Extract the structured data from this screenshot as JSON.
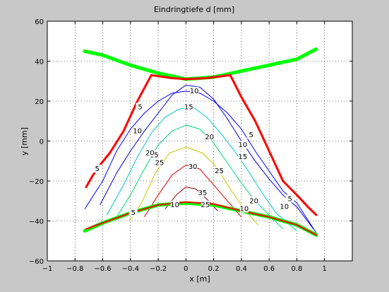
{
  "chart_data": {
    "type": "contour",
    "title": "Eindringtiefe    d [mm]",
    "xlabel": "x   [m]",
    "ylabel": "y    [mm]",
    "xlim": [
      -1,
      1.2
    ],
    "ylim": [
      -60,
      60
    ],
    "x_ticks": [
      -1,
      -0.8,
      -0.6,
      -0.4,
      -0.2,
      0,
      0.2,
      0.4,
      0.6,
      0.8,
      1
    ],
    "x_tick_labels": [
      "−1",
      "−0.8",
      "−0.6",
      "−0.4",
      "−0.2",
      "0",
      "0.2",
      "0.4",
      "0.6",
      "0.8",
      "1"
    ],
    "y_ticks": [
      60,
      40,
      20,
      0,
      -20,
      -40,
      -60
    ],
    "y_tick_labels": [
      "60",
      "40",
      "20",
      "0",
      "−20",
      "−40",
      "−60"
    ],
    "grid": true,
    "grid_style": "dotted",
    "background_color": "#c8c8c8",
    "plot_color": "#ffffff",
    "contours": [
      {
        "level": 5,
        "color": "#0000ff",
        "points": [
          [
            -0.73,
            -34
          ],
          [
            -0.6,
            -20
          ],
          [
            -0.5,
            -5
          ],
          [
            -0.4,
            6
          ],
          [
            -0.3,
            14
          ],
          [
            -0.2,
            20
          ],
          [
            -0.1,
            24
          ],
          [
            0,
            25
          ],
          [
            0.1,
            24
          ],
          [
            0.2,
            20
          ],
          [
            0.3,
            14
          ],
          [
            0.4,
            6
          ],
          [
            0.5,
            -5
          ],
          [
            0.6,
            -15
          ],
          [
            0.7,
            -25
          ],
          [
            0.8,
            -31
          ],
          [
            0.94,
            -46
          ]
        ]
      },
      {
        "level": 10,
        "color": "#0000c8",
        "points": [
          [
            -0.62,
            -32
          ],
          [
            -0.5,
            -16
          ],
          [
            -0.4,
            -5
          ],
          [
            -0.3,
            5
          ],
          [
            -0.2,
            14
          ],
          [
            -0.1,
            23
          ],
          [
            0,
            28
          ],
          [
            0.1,
            27
          ],
          [
            0.2,
            21
          ],
          [
            0.3,
            11
          ],
          [
            0.4,
            0
          ],
          [
            0.5,
            -10
          ],
          [
            0.6,
            -19
          ],
          [
            0.7,
            -27
          ],
          [
            0.8,
            -33
          ],
          [
            0.92,
            -44
          ]
        ]
      },
      {
        "level": 15,
        "color": "#00c8c8",
        "points": [
          [
            -0.57,
            -37
          ],
          [
            -0.45,
            -22
          ],
          [
            -0.35,
            -8
          ],
          [
            -0.25,
            4
          ],
          [
            -0.15,
            12
          ],
          [
            -0.05,
            16
          ],
          [
            0.05,
            17
          ],
          [
            0.15,
            12
          ],
          [
            0.25,
            4
          ],
          [
            0.35,
            -5
          ],
          [
            0.45,
            -15
          ],
          [
            0.55,
            -26
          ],
          [
            0.65,
            -36
          ],
          [
            0.8,
            -45
          ]
        ]
      },
      {
        "level": 20,
        "color": "#00d87c",
        "points": [
          [
            -0.5,
            -38
          ],
          [
            -0.4,
            -27
          ],
          [
            -0.3,
            -14
          ],
          [
            -0.2,
            -2
          ],
          [
            -0.1,
            5
          ],
          [
            0,
            8
          ],
          [
            0.1,
            6
          ],
          [
            0.2,
            -1
          ],
          [
            0.3,
            -11
          ],
          [
            0.4,
            -21
          ],
          [
            0.5,
            -30
          ],
          [
            0.6,
            -37
          ],
          [
            0.7,
            -44
          ]
        ]
      },
      {
        "level": 25,
        "color": "#c8c800",
        "points": [
          [
            -0.41,
            -40
          ],
          [
            -0.32,
            -31
          ],
          [
            -0.22,
            -16
          ],
          [
            -0.12,
            -6
          ],
          [
            0,
            -3
          ],
          [
            0.12,
            -6
          ],
          [
            0.22,
            -13
          ],
          [
            0.32,
            -24
          ],
          [
            0.42,
            -34
          ],
          [
            0.52,
            -42
          ]
        ]
      },
      {
        "level": 30,
        "color": "#e00000",
        "points": [
          [
            -0.3,
            -38
          ],
          [
            -0.2,
            -27
          ],
          [
            -0.1,
            -17
          ],
          [
            0,
            -12
          ],
          [
            0.1,
            -14
          ],
          [
            0.2,
            -22
          ],
          [
            0.3,
            -30
          ],
          [
            0.4,
            -38
          ]
        ]
      },
      {
        "level": 35,
        "color": "#960000",
        "points": [
          [
            -0.15,
            -34
          ],
          [
            -0.07,
            -27
          ],
          [
            0,
            -23
          ],
          [
            0.07,
            -24
          ],
          [
            0.15,
            -29
          ],
          [
            0.23,
            -35
          ]
        ]
      }
    ],
    "contour_labels": [
      {
        "text": "5",
        "x": -0.64,
        "y": -14,
        "color": "#0000ff"
      },
      {
        "text": "5",
        "x": -0.33,
        "y": 17,
        "color": "#0000ff"
      },
      {
        "text": "10",
        "x": 0.06,
        "y": 25,
        "color": "#0000c8"
      },
      {
        "text": "5",
        "x": 0.47,
        "y": 3,
        "color": "#0000ff"
      },
      {
        "text": "5",
        "x": 0.75,
        "y": -29,
        "color": "#0000ff"
      },
      {
        "text": "10",
        "x": -0.35,
        "y": 5,
        "color": "#0000c8"
      },
      {
        "text": "10",
        "x": 0.41,
        "y": -2,
        "color": "#0000c8"
      },
      {
        "text": "10",
        "x": 0.71,
        "y": -33,
        "color": "#0000c8"
      },
      {
        "text": "15",
        "x": 0.02,
        "y": 17,
        "color": "#00c8c8"
      },
      {
        "text": "15",
        "x": -0.23,
        "y": -7,
        "color": "#00c8c8"
      },
      {
        "text": "15",
        "x": 0.41,
        "y": -8,
        "color": "#00c8c8"
      },
      {
        "text": "20",
        "x": 0.17,
        "y": 2,
        "color": "#00d87c"
      },
      {
        "text": "20",
        "x": -0.26,
        "y": -6,
        "color": "#00d87c"
      },
      {
        "text": "20",
        "x": 0.49,
        "y": -30,
        "color": "#00d87c"
      },
      {
        "text": "25",
        "x": -0.19,
        "y": -11,
        "color": "#c8c800"
      },
      {
        "text": "25",
        "x": 0.24,
        "y": -15,
        "color": "#c8c800"
      },
      {
        "text": "30",
        "x": 0.05,
        "y": -13,
        "color": "#e00000"
      },
      {
        "text": "35",
        "x": 0.12,
        "y": -26,
        "color": "#960000"
      },
      {
        "text": "10",
        "x": -0.08,
        "y": -32,
        "color": "#0000c8"
      },
      {
        "text": "25",
        "x": 0.14,
        "y": -32,
        "color": "#c8c800"
      },
      {
        "text": "10",
        "x": 0.42,
        "y": -34,
        "color": "#0000c8"
      },
      {
        "text": "5",
        "x": -0.38,
        "y": -36,
        "color": "#0000ff"
      }
    ],
    "boundaries": [
      {
        "name": "upper-green",
        "color": "#00ff00",
        "width": 5,
        "points": [
          [
            -0.73,
            45
          ],
          [
            -0.6,
            43
          ],
          [
            -0.4,
            38
          ],
          [
            -0.2,
            34
          ],
          [
            0,
            31
          ],
          [
            0.2,
            32
          ],
          [
            0.4,
            35
          ],
          [
            0.6,
            38
          ],
          [
            0.8,
            41
          ],
          [
            0.94,
            46
          ]
        ]
      },
      {
        "name": "upper-red-arc",
        "color": "#ff0000",
        "width": 3,
        "points": [
          [
            -0.25,
            33
          ],
          [
            -0.1,
            31.5
          ],
          [
            0,
            31
          ],
          [
            0.15,
            31.5
          ],
          [
            0.32,
            33
          ]
        ]
      },
      {
        "name": "left-red",
        "color": "#ff0000",
        "width": 3,
        "points": [
          [
            -0.25,
            33
          ],
          [
            -0.35,
            20
          ],
          [
            -0.45,
            5
          ],
          [
            -0.55,
            -6
          ],
          [
            -0.62,
            -12
          ],
          [
            -0.67,
            -17
          ],
          [
            -0.72,
            -23
          ]
        ]
      },
      {
        "name": "right-red",
        "color": "#ff0000",
        "width": 3,
        "points": [
          [
            0.32,
            33
          ],
          [
            0.4,
            22
          ],
          [
            0.5,
            10
          ],
          [
            0.6,
            -5
          ],
          [
            0.7,
            -20
          ],
          [
            0.8,
            -27
          ],
          [
            0.88,
            -33
          ],
          [
            0.94,
            -37
          ]
        ]
      },
      {
        "name": "lower-green",
        "color": "#00ff00",
        "width": 5,
        "points": [
          [
            -0.73,
            -45
          ],
          [
            -0.6,
            -41
          ],
          [
            -0.4,
            -36
          ],
          [
            -0.2,
            -32
          ],
          [
            0,
            -31
          ],
          [
            0.2,
            -32
          ],
          [
            0.4,
            -35
          ],
          [
            0.6,
            -38
          ],
          [
            0.8,
            -42
          ],
          [
            0.94,
            -47
          ]
        ]
      },
      {
        "name": "lower-red",
        "color": "#ff0000",
        "width": 2,
        "points": [
          [
            -0.72,
            -44
          ],
          [
            -0.6,
            -41
          ],
          [
            -0.4,
            -36
          ],
          [
            -0.2,
            -32
          ],
          [
            0,
            -30.5
          ],
          [
            0.2,
            -31.5
          ],
          [
            0.4,
            -35
          ],
          [
            0.6,
            -38
          ],
          [
            0.8,
            -42
          ],
          [
            0.94,
            -47
          ]
        ]
      }
    ]
  }
}
